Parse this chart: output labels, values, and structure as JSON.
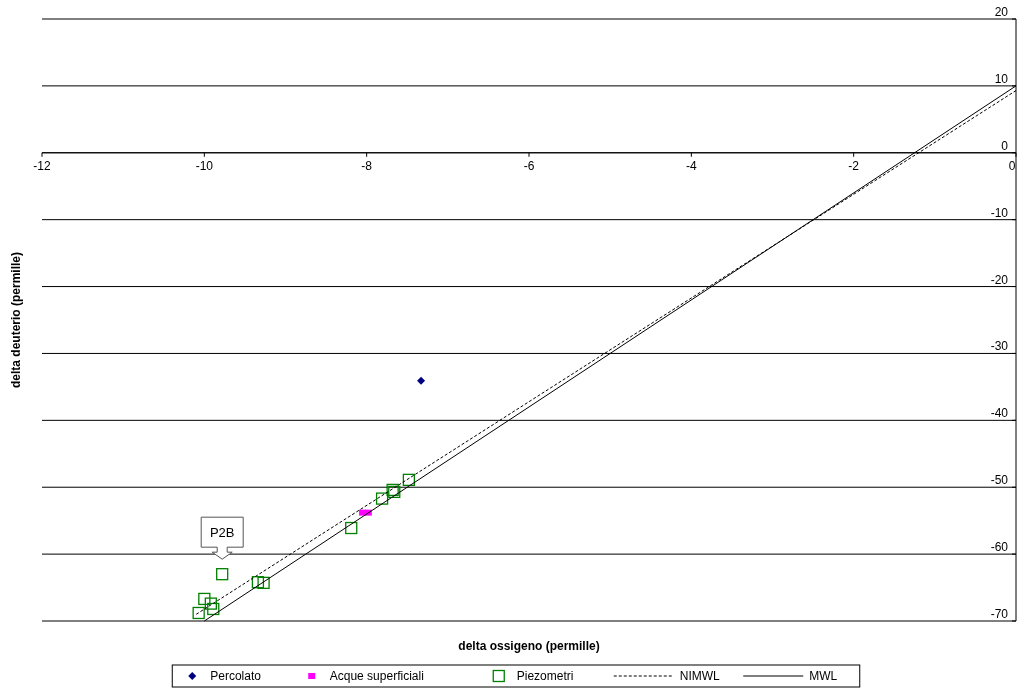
{
  "chart_data": {
    "type": "scatter",
    "xlabel": "delta ossigeno (permille)",
    "ylabel": "delta deuterio (permille)",
    "xlim": [
      -12,
      0
    ],
    "xticks": [
      -12,
      -10,
      -8,
      -6,
      -4,
      -2,
      0
    ],
    "ylim": [
      -70,
      20
    ],
    "yticks": [
      -70,
      -60,
      -50,
      -40,
      -30,
      -20,
      -10,
      0,
      10,
      20
    ],
    "grid": "y",
    "legend": "bottom",
    "series": [
      {
        "name": "Percolato",
        "marker": "diamond",
        "color": "#000080",
        "x": [
          -7.33
        ],
        "values": [
          -34.1
        ]
      },
      {
        "name": "Acque superficiali",
        "marker": "square",
        "color": "#ff00ff",
        "x": [
          -8.05,
          -7.98
        ],
        "values": [
          -53.8,
          -53.8
        ]
      },
      {
        "name": "Piezometri",
        "marker": "square-open",
        "color": "#008000",
        "x": [
          -8.19,
          -7.81,
          -7.66,
          -7.68,
          -7.48,
          -9.78,
          -9.34,
          -9.27,
          -10.0,
          -9.92,
          -9.89,
          -10.07
        ],
        "values": [
          -56.1,
          -51.7,
          -50.7,
          -50.4,
          -48.9,
          -63.0,
          -64.2,
          -64.3,
          -66.7,
          -67.4,
          -68.2,
          -68.8
        ]
      },
      {
        "name": "NIMWL",
        "type": "line",
        "line_style": "dashed",
        "color": "#000000",
        "x": [
          -10.1,
          0
        ],
        "values": [
          -69.0,
          9.3
        ]
      },
      {
        "name": "MWL",
        "type": "line",
        "line_style": "solid",
        "color": "#000000",
        "x": [
          -10,
          0
        ],
        "values": [
          -70,
          10
        ]
      }
    ],
    "annotations": [
      {
        "text": "P2B",
        "x": -9.78,
        "y": -63.0
      }
    ]
  }
}
